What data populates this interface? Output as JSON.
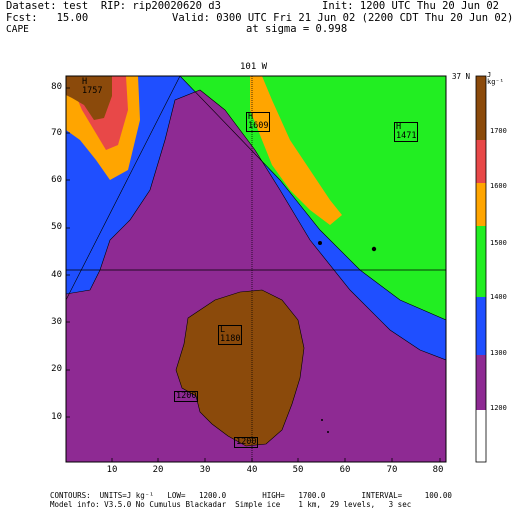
{
  "header": {
    "dataset": "Dataset: test  RIP: rip20020620 d3",
    "init": "Init: 1200 UTC Thu 20 Jun 02",
    "fcst": "Fcst:   15.00",
    "valid": "Valid: 0300 UTC Fri 21 Jun 02 (2200 CDT Thu 20 Jun 02)",
    "field": "CAPE",
    "sigma": "at sigma = 0.998"
  },
  "plot": {
    "top_label": "101 W",
    "right_label": "37 N",
    "units_label": "J kg⁻¹"
  },
  "axes": {
    "x_ticks": [
      "10",
      "20",
      "30",
      "40",
      "50",
      "60",
      "70",
      "80"
    ],
    "y_ticks": [
      "80",
      "70",
      "60",
      "50",
      "40",
      "30",
      "20",
      "10"
    ]
  },
  "colorbar": {
    "ticks": [
      "1700",
      "1600",
      "1500",
      "1400",
      "1300",
      "1200"
    ],
    "colors": [
      "#8b4a0b",
      "#e84848",
      "#ffa500",
      "#22ee22",
      "#1f4fff",
      "#8e2a93",
      "#ffffff"
    ]
  },
  "annotations": {
    "h_nw": "H",
    "h_nw_val": "1757",
    "h_center": "H",
    "h_center_val": "1609",
    "h_ne": "H",
    "h_ne_val": "1471",
    "l_center": "L",
    "l_center_val": "1180",
    "c1200_left": "1200",
    "c1200_bottom": "1200"
  },
  "footer": {
    "contours": "CONTOURS:  UNITS=J kg⁻¹   LOW=   1200.0        HIGH=   1700.0        INTERVAL=     100.00",
    "model": "Model info: V3.5.0 No Cumulus Blackadar  Simple ice    1 km,  29 levels,   3 sec"
  }
}
